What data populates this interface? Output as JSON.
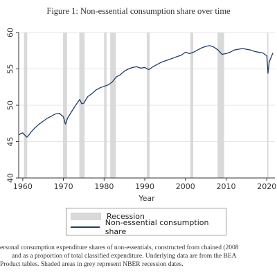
{
  "figure_title": "Figure 1: Non-essential consumption share over time",
  "colors": {
    "line": "#1f3d66",
    "recession": "#d9d9d9",
    "axis": "#333333"
  },
  "legend": {
    "recession_label": "Recession",
    "series_label": "Non-essential consumption share"
  },
  "caption": [
    "ersonal consumption expenditure shares of non-essentials, constructed from chained (2008",
    "and as a proportion of total classified expenditure. Underlying data are from the BEA",
    "Product tables. Shaded areas in grey represent NBER recession dates."
  ],
  "chart_data": {
    "type": "line",
    "title": "",
    "xlabel": "Year",
    "ylabel": "",
    "xlim": [
      1959,
      2022
    ],
    "ylim": [
      40,
      60
    ],
    "xticks": [
      "1960",
      "1970",
      "1980",
      "1990",
      "2000",
      "2010",
      "2020"
    ],
    "yticks": [
      "40",
      "45",
      "50",
      "55",
      "60"
    ],
    "grid": true,
    "legend_position": "bottom",
    "recessions": [
      [
        1960.3,
        1961.1
      ],
      [
        1969.9,
        1970.9
      ],
      [
        1973.9,
        1975.2
      ],
      [
        1980.0,
        1980.6
      ],
      [
        1981.5,
        1982.9
      ],
      [
        1990.5,
        1991.2
      ],
      [
        2001.2,
        2001.9
      ],
      [
        2007.9,
        2009.5
      ],
      [
        2020.1,
        2020.4
      ]
    ],
    "series": [
      {
        "name": "Non-essential consumption share",
        "x": [
          1959.0,
          1959.5,
          1960.0,
          1960.5,
          1961.0,
          1961.5,
          1962.0,
          1963.0,
          1964.0,
          1965.0,
          1966.0,
          1967.0,
          1968.0,
          1969.0,
          1970.0,
          1970.5,
          1971.0,
          1972.0,
          1973.0,
          1974.0,
          1974.5,
          1975.0,
          1976.0,
          1977.0,
          1978.0,
          1979.0,
          1980.0,
          1981.0,
          1982.0,
          1983.0,
          1984.0,
          1985.0,
          1986.0,
          1987.0,
          1988.0,
          1989.0,
          1990.0,
          1991.0,
          1992.0,
          1993.0,
          1994.0,
          1995.0,
          1996.0,
          1997.0,
          1998.0,
          1999.0,
          2000.0,
          2001.0,
          2002.0,
          2003.0,
          2004.0,
          2005.0,
          2006.0,
          2007.0,
          2008.0,
          2009.0,
          2010.0,
          2011.0,
          2012.0,
          2013.0,
          2014.0,
          2015.0,
          2016.0,
          2017.0,
          2018.0,
          2019.0,
          2020.0,
          2020.3,
          2020.6,
          2021.0,
          2021.5
        ],
        "values": [
          45.9,
          46.1,
          46.2,
          45.9,
          45.6,
          45.9,
          46.3,
          46.9,
          47.4,
          47.8,
          48.2,
          48.5,
          48.8,
          48.9,
          48.4,
          47.4,
          48.2,
          49.1,
          50.0,
          50.8,
          50.2,
          50.3,
          51.2,
          51.6,
          52.1,
          52.4,
          52.6,
          52.8,
          53.2,
          53.9,
          54.2,
          54.7,
          55.0,
          55.2,
          55.3,
          55.1,
          55.2,
          54.9,
          55.3,
          55.6,
          55.9,
          56.1,
          56.3,
          56.5,
          56.7,
          56.9,
          57.3,
          57.1,
          57.3,
          57.6,
          57.9,
          58.1,
          58.2,
          58.0,
          57.6,
          57.0,
          57.1,
          57.3,
          57.6,
          57.7,
          57.8,
          57.7,
          57.6,
          57.4,
          57.3,
          57.2,
          56.8,
          54.4,
          56.0,
          56.5,
          57.2
        ]
      }
    ]
  }
}
